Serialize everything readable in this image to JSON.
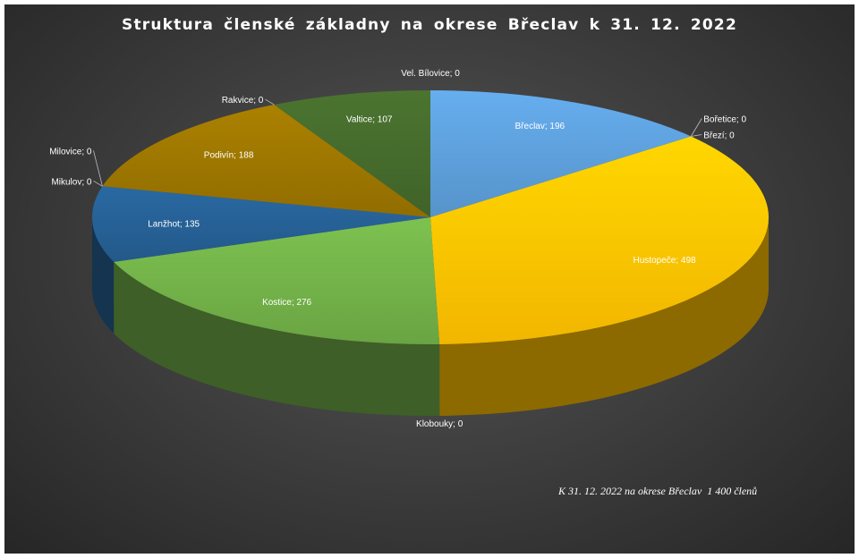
{
  "chart_data": {
    "type": "pie",
    "title": "Struktura členské základny na okrese Břeclav k 31. 12. 2022",
    "categories": [
      "Břeclav",
      "Bořetice",
      "Březí",
      "Hustopeče",
      "Klobouky",
      "Kostice",
      "Lanžhot",
      "Mikulov",
      "Milovice",
      "Podivín",
      "Rakvice",
      "Valtice",
      "Vel. Bílovice"
    ],
    "values": [
      196,
      0,
      0,
      498,
      0,
      276,
      135,
      0,
      0,
      188,
      0,
      107,
      0
    ],
    "labels": [
      "Břeclav; 196",
      "Bořetice; 0",
      "Březí; 0",
      "Hustopeče; 498",
      "Klobouky; 0",
      "Kostice; 276",
      "Lanžhot; 135",
      "Mikulov; 0",
      "Milovice; 0",
      "Podivín; 188",
      "Rakvice; 0",
      "Valtice; 107",
      "Vel. Bílovice; 0"
    ],
    "colors": [
      "#5b9bd5",
      "#ed7d31",
      "#a5a5a5",
      "#ffc000",
      "#4472c4",
      "#70ad47",
      "#255e91",
      "#9e480e",
      "#636363",
      "#997300",
      "#264478",
      "#43682b",
      "#698ed0"
    ],
    "style": "3d-pie",
    "start": "12 o'clock",
    "direction": "clockwise",
    "annotation": "K 31. 12. 2022 na okrese Břeclav  1 400 členů"
  }
}
